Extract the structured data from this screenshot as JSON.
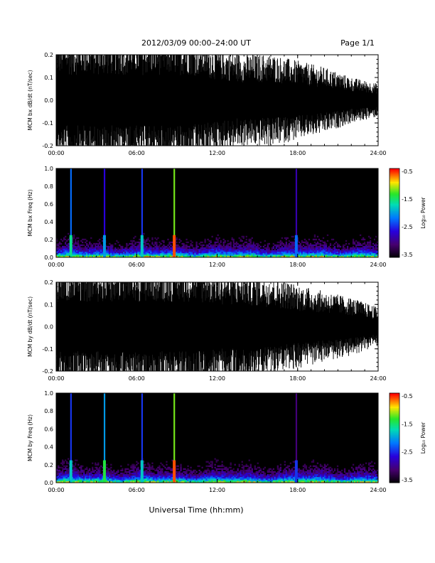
{
  "header": {
    "title": "2012/03/09   00:00–24:00 UT",
    "page": "Page 1/1"
  },
  "footer": {
    "xlabel": "Universal Time (hh:mm)"
  },
  "colors": {
    "trace": "#000000",
    "background": "#ffffff",
    "spectrogram_bg": "#000000"
  },
  "chart_data": [
    {
      "type": "line",
      "title": "",
      "ylabel": "MCM bx dB/dt (nT/sec)",
      "xlabel": "",
      "x_ticks": [
        "00:00",
        "06:00",
        "12:00",
        "18:00",
        "24:00"
      ],
      "y_ticks": [
        "-0.2",
        "-0.1",
        "0.0",
        "0.1",
        "0.2"
      ],
      "xlim": [
        0,
        24
      ],
      "ylim": [
        -0.2,
        0.2
      ],
      "x_unit": "hours UT",
      "envelope_hours": [
        0,
        2,
        4,
        6,
        8,
        10,
        12,
        14,
        16,
        18,
        20,
        22,
        24
      ],
      "envelope_amplitude": [
        0.2,
        0.2,
        0.2,
        0.2,
        0.2,
        0.2,
        0.16,
        0.14,
        0.14,
        0.12,
        0.1,
        0.07,
        0.05
      ]
    },
    {
      "type": "heatmap",
      "title": "",
      "ylabel": "MCM bx Freq (Hz)",
      "xlabel": "",
      "x_ticks": [
        "00:00",
        "06:00",
        "12:00",
        "18:00",
        "24:00"
      ],
      "y_ticks": [
        "0.0",
        "0.2",
        "0.4",
        "0.6",
        "0.8",
        "1.0"
      ],
      "xlim": [
        0,
        24
      ],
      "ylim": [
        0,
        1.0
      ],
      "colorbar": {
        "label": "Log₁₀ Power",
        "ticks": [
          "-0.5",
          "-1.5",
          "-2.5",
          "-3.5"
        ],
        "range": [
          -3.5,
          -0.5
        ]
      },
      "bright_lines_hours": [
        1.1,
        3.6,
        6.4,
        8.8,
        17.9
      ],
      "bright_line_power": [
        -2.2,
        -2.6,
        -2.4,
        -1.2,
        -2.8
      ]
    },
    {
      "type": "line",
      "title": "",
      "ylabel": "MCM by dB/dt (nT/sec)",
      "xlabel": "",
      "x_ticks": [
        "00:00",
        "06:00",
        "12:00",
        "18:00",
        "24:00"
      ],
      "y_ticks": [
        "-0.2",
        "-0.1",
        "0.0",
        "0.1",
        "0.2"
      ],
      "xlim": [
        0,
        24
      ],
      "ylim": [
        -0.2,
        0.2
      ],
      "x_unit": "hours UT",
      "envelope_hours": [
        0,
        2,
        4,
        6,
        8,
        10,
        12,
        14,
        16,
        18,
        20,
        22,
        24
      ],
      "envelope_amplitude": [
        0.2,
        0.2,
        0.2,
        0.2,
        0.2,
        0.2,
        0.18,
        0.17,
        0.16,
        0.13,
        0.11,
        0.09,
        0.06
      ]
    },
    {
      "type": "heatmap",
      "title": "",
      "ylabel": "MCM by Freq (Hz)",
      "xlabel": "",
      "x_ticks": [
        "00:00",
        "06:00",
        "12:00",
        "18:00",
        "24:00"
      ],
      "y_ticks": [
        "0.0",
        "0.2",
        "0.4",
        "0.6",
        "0.8",
        "1.0"
      ],
      "xlim": [
        0,
        24
      ],
      "ylim": [
        0,
        1.0
      ],
      "colorbar": {
        "label": "Log₁₀ Power",
        "ticks": [
          "-0.5",
          "-1.5",
          "-2.5",
          "-3.5"
        ],
        "range": [
          -3.5,
          -0.5
        ]
      },
      "bright_lines_hours": [
        1.1,
        3.6,
        6.4,
        8.8,
        17.9
      ],
      "bright_line_power": [
        -2.4,
        -2.0,
        -2.4,
        -1.2,
        -3.0
      ]
    }
  ]
}
